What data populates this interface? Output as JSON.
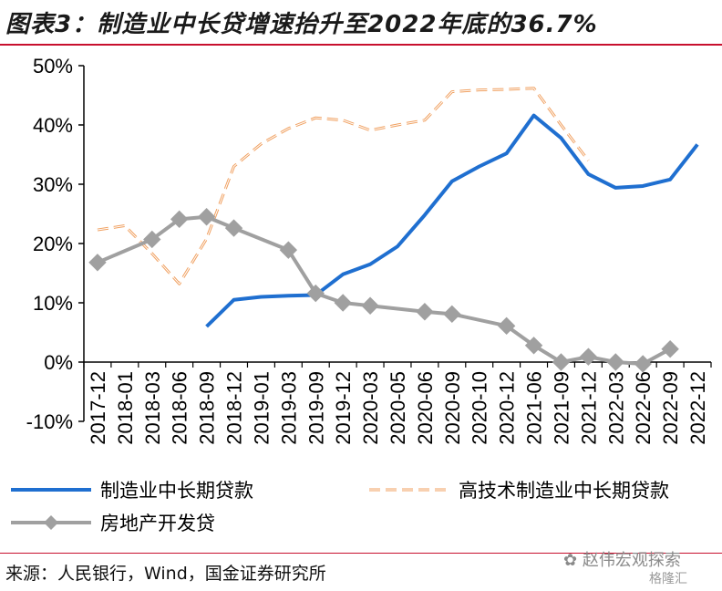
{
  "page": {
    "title": "图表3：制造业中长贷增速抬升至2022年底的36.7%",
    "source": "来源：人民银行，Wind，国金证券研究所",
    "watermark": "赵伟宏观探索",
    "watermark_sub": "格隆汇"
  },
  "chart_data": {
    "type": "line",
    "title": "",
    "xlabel": "",
    "ylabel": "",
    "ylim": [
      -10,
      50
    ],
    "yticks": [
      -10,
      0,
      10,
      20,
      30,
      40,
      50
    ],
    "ytick_labels": [
      "-10%",
      "0%",
      "10%",
      "20%",
      "30%",
      "40%",
      "50%"
    ],
    "categories": [
      "2017-12",
      "2018-01",
      "2018-03",
      "2018-06",
      "2018-09",
      "2018-12",
      "2019-01",
      "2019-03",
      "2019-09",
      "2019-12",
      "2020-03",
      "2020-05",
      "2020-06",
      "2020-09",
      "2020-10",
      "2020-12",
      "2021-06",
      "2021-09",
      "2021-12",
      "2022-03",
      "2022-06",
      "2022-09",
      "2022-12"
    ],
    "legend_position": "bottom",
    "grid": false,
    "colors": {
      "blue": "#1f6fd0",
      "orange": "#f0a060",
      "gray": "#a0a0a0"
    },
    "series": [
      {
        "name": "制造业中长期贷款",
        "style": "solid",
        "color": "#1f6fd0",
        "values": [
          null,
          null,
          null,
          null,
          6.0,
          10.5,
          11.0,
          11.2,
          11.3,
          14.8,
          16.5,
          19.5,
          24.8,
          30.5,
          33.0,
          35.2,
          41.6,
          37.8,
          31.7,
          29.4,
          29.7,
          30.8,
          36.7
        ]
      },
      {
        "name": "高技术制造业中长期贷款",
        "style": "dashed",
        "color": "#f0a060",
        "values": [
          22.3,
          23.0,
          18.3,
          13.2,
          20.8,
          33.0,
          36.8,
          39.4,
          41.2,
          40.8,
          39.1,
          40.0,
          40.8,
          45.6,
          45.9,
          46.0,
          46.2,
          40.0,
          34.0,
          null,
          null,
          null,
          null
        ]
      },
      {
        "name": "房地产开发贷",
        "style": "solid-marker",
        "color": "#a0a0a0",
        "values": [
          16.8,
          null,
          20.7,
          24.1,
          24.5,
          22.6,
          null,
          18.9,
          11.6,
          10.0,
          9.5,
          null,
          8.5,
          8.1,
          null,
          6.1,
          2.8,
          0.0,
          0.9,
          0.0,
          -0.3,
          2.2,
          null
        ]
      }
    ]
  }
}
